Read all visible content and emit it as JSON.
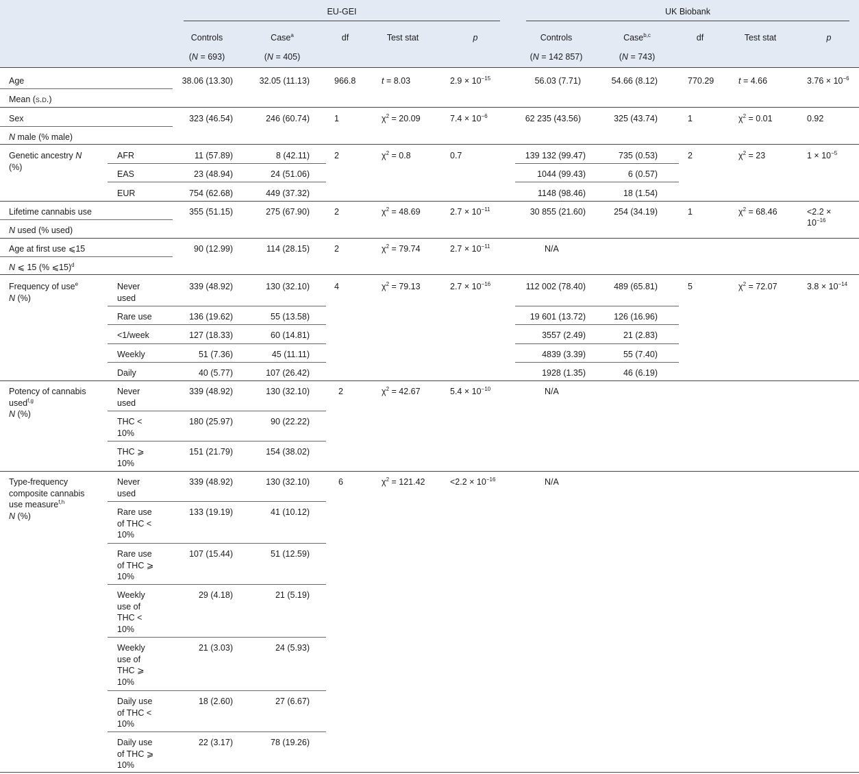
{
  "groups": {
    "eu": "EU-GEI",
    "uk": "UK Biobank"
  },
  "columns": {
    "controls": "Controls",
    "case": "Case",
    "case_sup_eu": "a",
    "case_sup_uk": "b,c",
    "df": "df",
    "test_stat": "Test stat",
    "p": "p",
    "n_label": "N",
    "eu_controls_n": "= 693",
    "eu_case_n": "= 405",
    "uk_controls_n": "= 142 857",
    "uk_case_n": "= 743"
  },
  "rows": {
    "age": {
      "label": "Age",
      "sublabel_pre": "Mean (",
      "sublabel_sc": "s.d.",
      "sublabel_post": ")",
      "eu": [
        "38.06 (13.30)",
        "32.05 (11.13)",
        "966.8",
        "t",
        " = 8.03",
        "2.9 × 10",
        "−15"
      ],
      "uk": [
        "56.03 (7.71)",
        "54.66 (8.12)",
        "770.29",
        "t",
        " = 4.66",
        "3.76 × 10",
        "−6"
      ]
    },
    "sex": {
      "label": "Sex",
      "sublabel_n": "N",
      "sublabel": " male (% male)",
      "eu": [
        "323 (46.54)",
        "246 (60.74)",
        "1",
        "χ",
        "2",
        " = 20.09",
        "7.4 × 10",
        "−6"
      ],
      "uk": [
        "62 235 (43.56)",
        "325 (43.74)",
        "1",
        "χ",
        "2",
        " = 0.01",
        "0.92"
      ]
    },
    "ancestry": {
      "label_pre": "Genetic ancestry ",
      "label_n": "N",
      "label_post": "(%)",
      "subs": [
        "AFR",
        "EAS",
        "EUR"
      ],
      "eu_controls": [
        "11 (57.89)",
        "23 (48.94)",
        "754 (62.68)"
      ],
      "eu_case": [
        "8 (42.11)",
        "24 (51.06)",
        "449 (37.32)"
      ],
      "eu_stats": [
        "2",
        "χ",
        "2",
        " = 0.8",
        "0.7"
      ],
      "uk_controls": [
        "139 132 (99.47)",
        "1044 (99.43)",
        "1148 (98.46)"
      ],
      "uk_case": [
        "735 (0.53)",
        "6 (0.57)",
        "18 (1.54)"
      ],
      "uk_stats": [
        "2",
        "χ",
        "2",
        " = 23",
        "1 × 10",
        "−5"
      ]
    },
    "lifetime": {
      "label": "Lifetime cannabis use",
      "sublabel_n": "N",
      "sublabel": " used (% used)",
      "eu": [
        "355 (51.15)",
        "275 (67.90)",
        "2",
        "χ",
        "2",
        " = 48.69",
        "2.7 × 10",
        "−11"
      ],
      "uk": [
        "30 855 (21.60)",
        "254 (34.19)",
        "1",
        "χ",
        "2",
        " = 68.46",
        "<2.2 ×",
        "10",
        "−16"
      ]
    },
    "firstuse": {
      "label": "Age at first use ⩽15",
      "sublabel_n": "N",
      "sublabel": " ⩽ 15 (% ⩽15)",
      "sublabel_sup": "d",
      "eu": [
        "90 (12.99)",
        "114 (28.15)",
        "2",
        "χ",
        "2",
        " = 79.74",
        "2.7 × 10",
        "−11"
      ],
      "uk_na": "N/A"
    },
    "frequency": {
      "label": "Frequency of use",
      "label_sup": "e",
      "label_n": "N",
      "label_post": " (%)",
      "subs": [
        "Never used",
        "Rare use",
        "<1/week",
        "Weekly",
        "Daily"
      ],
      "eu_controls": [
        "339 (48.92)",
        "136 (19.62)",
        "127 (18.33)",
        "51 (7.36)",
        "40 (5.77)"
      ],
      "eu_case": [
        "130 (32.10)",
        "55 (13.58)",
        "60 (14.81)",
        "45 (11.11)",
        "107 (26.42)"
      ],
      "eu_stats": [
        "4",
        "χ",
        "2",
        " = 79.13",
        "2.7 × 10",
        "−16"
      ],
      "uk_controls": [
        "112 002 (78.40)",
        "19 601 (13.72)",
        "3557 (2.49)",
        "4839 (3.39)",
        "1928 (1.35)"
      ],
      "uk_case": [
        "489 (65.81)",
        "126 (16.96)",
        "21 (2.83)",
        "55 (7.40)",
        "46 (6.19)"
      ],
      "uk_stats": [
        "5",
        "χ",
        "2",
        " = 72.07",
        "3.8 × 10",
        "−14"
      ]
    },
    "potency": {
      "label": "Potency of cannabis used",
      "label_sup": "f,g",
      "label_n": "N",
      "label_post": " (%)",
      "subs": [
        "Never used",
        "THC < 10%",
        "THC ⩾ 10%"
      ],
      "eu_controls": [
        "339 (48.92)",
        "180 (25.97)",
        "151 (21.79)"
      ],
      "eu_case": [
        "130 (32.10)",
        "90 (22.22)",
        "154 (38.02)"
      ],
      "eu_stats": [
        "2",
        "χ",
        "2",
        " = 42.67",
        "5.4 × 10",
        "−10"
      ],
      "uk_na": "N/A"
    },
    "typefreq": {
      "label": "Type-frequency composite cannabis use measure",
      "label_sup": "f,h",
      "label_n": "N",
      "label_post": " (%)",
      "subs": [
        "Never used",
        "Rare use of THC < 10%",
        "Rare use of THC ⩾ 10%",
        "Weekly use of THC < 10%",
        "Weekly use of THC ⩾ 10%",
        "Daily use of THC < 10%",
        "Daily use of THC ⩾ 10%"
      ],
      "eu_controls": [
        "339 (48.92)",
        "133 (19.19)",
        "107 (15.44)",
        "29 (4.18)",
        "21 (3.03)",
        "18 (2.60)",
        "22 (3.17)"
      ],
      "eu_case": [
        "130 (32.10)",
        "41 (10.12)",
        "51 (12.59)",
        "21 (5.19)",
        "24 (5.93)",
        "27 (6.67)",
        "78 (19.26)"
      ],
      "eu_stats": [
        "6",
        "χ",
        "2",
        " = 121.42",
        "<2.2 × 10",
        "−16"
      ],
      "uk_na": "N/A"
    }
  }
}
